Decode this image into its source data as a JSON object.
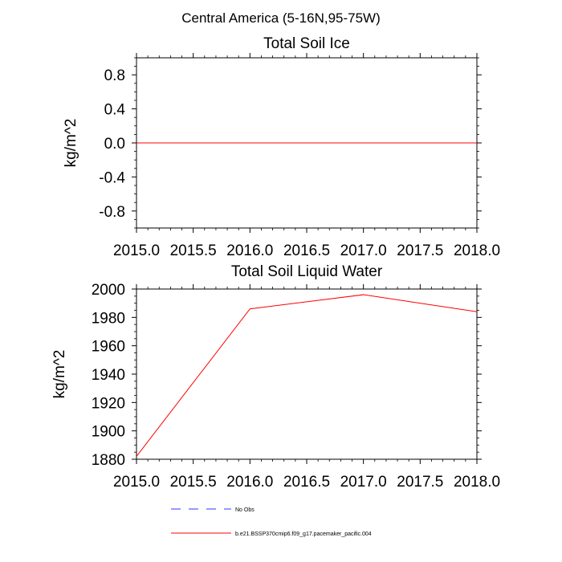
{
  "figure": {
    "suptitle": "Central America (5-16N,95-75W)"
  },
  "chart_data": [
    {
      "type": "line",
      "title": "Total Soil Ice",
      "xlabel": "",
      "ylabel": "kg/m^2",
      "xlim": [
        2015.0,
        2018.0
      ],
      "ylim": [
        -1.0,
        1.0
      ],
      "x_ticks": [
        2015.0,
        2015.5,
        2016.0,
        2016.5,
        2017.0,
        2017.5,
        2018.0
      ],
      "x_tick_labels": [
        "2015.0",
        "2015.5",
        "2016.0",
        "2016.5",
        "2017.0",
        "2017.5",
        "2018.0"
      ],
      "y_ticks": [
        -0.8,
        -0.4,
        0.0,
        0.4,
        0.8
      ],
      "y_tick_labels": [
        "-0.8",
        "-0.4",
        "0.0",
        "0.4",
        "0.8"
      ],
      "grid": false,
      "series": [
        {
          "name": "b.e21.BSSP370cmip6.f09_g17.pacemaker_pacific.004",
          "color": "#ff0000",
          "x": [
            2015.0,
            2016.0,
            2017.0,
            2018.0
          ],
          "y": [
            0.0,
            0.0,
            0.0,
            0.0
          ]
        }
      ]
    },
    {
      "type": "line",
      "title": "Total Soil Liquid Water",
      "xlabel": "",
      "ylabel": "kg/m^2",
      "xlim": [
        2015.0,
        2018.0
      ],
      "ylim": [
        1880,
        2000
      ],
      "x_ticks": [
        2015.0,
        2015.5,
        2016.0,
        2016.5,
        2017.0,
        2017.5,
        2018.0
      ],
      "x_tick_labels": [
        "2015.0",
        "2015.5",
        "2016.0",
        "2016.5",
        "2017.0",
        "2017.5",
        "2018.0"
      ],
      "y_ticks": [
        1880,
        1900,
        1920,
        1940,
        1960,
        1980,
        2000
      ],
      "y_tick_labels": [
        "1880",
        "1900",
        "1920",
        "1940",
        "1960",
        "1980",
        "2000"
      ],
      "grid": false,
      "series": [
        {
          "name": "b.e21.BSSP370cmip6.f09_g17.pacemaker_pacific.004",
          "color": "#ff0000",
          "x": [
            2015.0,
            2016.0,
            2017.0,
            2018.0
          ],
          "y": [
            1882,
            1986,
            1996,
            1984
          ]
        }
      ]
    }
  ],
  "legend": {
    "placement": "bottom",
    "entries": [
      {
        "label": "No Obs",
        "color": "#3333ff",
        "dash": "dashed"
      },
      {
        "label": "b.e21.BSSP370cmip6.f09_g17.pacemaker_pacific.004",
        "color": "#ff0000",
        "dash": "solid"
      }
    ]
  }
}
